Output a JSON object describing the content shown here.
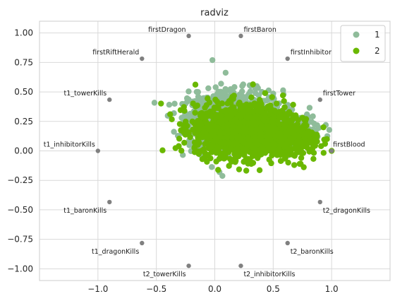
{
  "chart_data": {
    "type": "scatter",
    "subtype": "radviz",
    "title": "radviz",
    "xlim": [
      -1.5,
      1.5
    ],
    "ylim": [
      -1.1,
      1.1
    ],
    "x_ticks": [
      -1.0,
      -0.5,
      0.0,
      0.5,
      1.0
    ],
    "x_tick_labels": [
      "−1.0",
      "−0.5",
      "0.0",
      "0.5",
      "1.0"
    ],
    "y_ticks": [
      1.0,
      0.75,
      0.5,
      0.25,
      0.0,
      -0.25,
      -0.5,
      -0.75,
      -1.0
    ],
    "y_tick_labels": [
      "1.00",
      "0.75",
      "0.50",
      "0.25",
      "0.00",
      "−0.25",
      "−0.50",
      "−0.75",
      "−1.00"
    ],
    "grid": true,
    "legend_position": "top-right",
    "anchors": [
      {
        "label": "firstBlood",
        "x": 1.0,
        "y": 0.0
      },
      {
        "label": "firstTower",
        "x": 0.901,
        "y": 0.434
      },
      {
        "label": "firstInhibitor",
        "x": 0.623,
        "y": 0.782
      },
      {
        "label": "firstBaron",
        "x": 0.223,
        "y": 0.975
      },
      {
        "label": "firstDragon",
        "x": -0.223,
        "y": 0.975
      },
      {
        "label": "firstRiftHerald",
        "x": -0.623,
        "y": 0.782
      },
      {
        "label": "t1_towerKills",
        "x": -0.901,
        "y": 0.434
      },
      {
        "label": "t1_inhibitorKills",
        "x": -1.0,
        "y": 0.0
      },
      {
        "label": "t1_baronKills",
        "x": -0.901,
        "y": -0.434
      },
      {
        "label": "t1_dragonKills",
        "x": -0.623,
        "y": -0.782
      },
      {
        "label": "t2_towerKills",
        "x": -0.223,
        "y": -0.975
      },
      {
        "label": "t2_inhibitorKills",
        "x": 0.223,
        "y": -0.975
      },
      {
        "label": "t2_baronKills",
        "x": 0.623,
        "y": -0.782
      },
      {
        "label": "t2_dragonKills",
        "x": 0.901,
        "y": -0.434
      }
    ],
    "series": [
      {
        "name": "1",
        "color": "#8fbc9a"
      },
      {
        "name": "2",
        "color": "#6ab800"
      }
    ],
    "colors": {
      "anchor": "#808080",
      "grid": "#d9d9d9",
      "spine": "#cccccc"
    }
  }
}
